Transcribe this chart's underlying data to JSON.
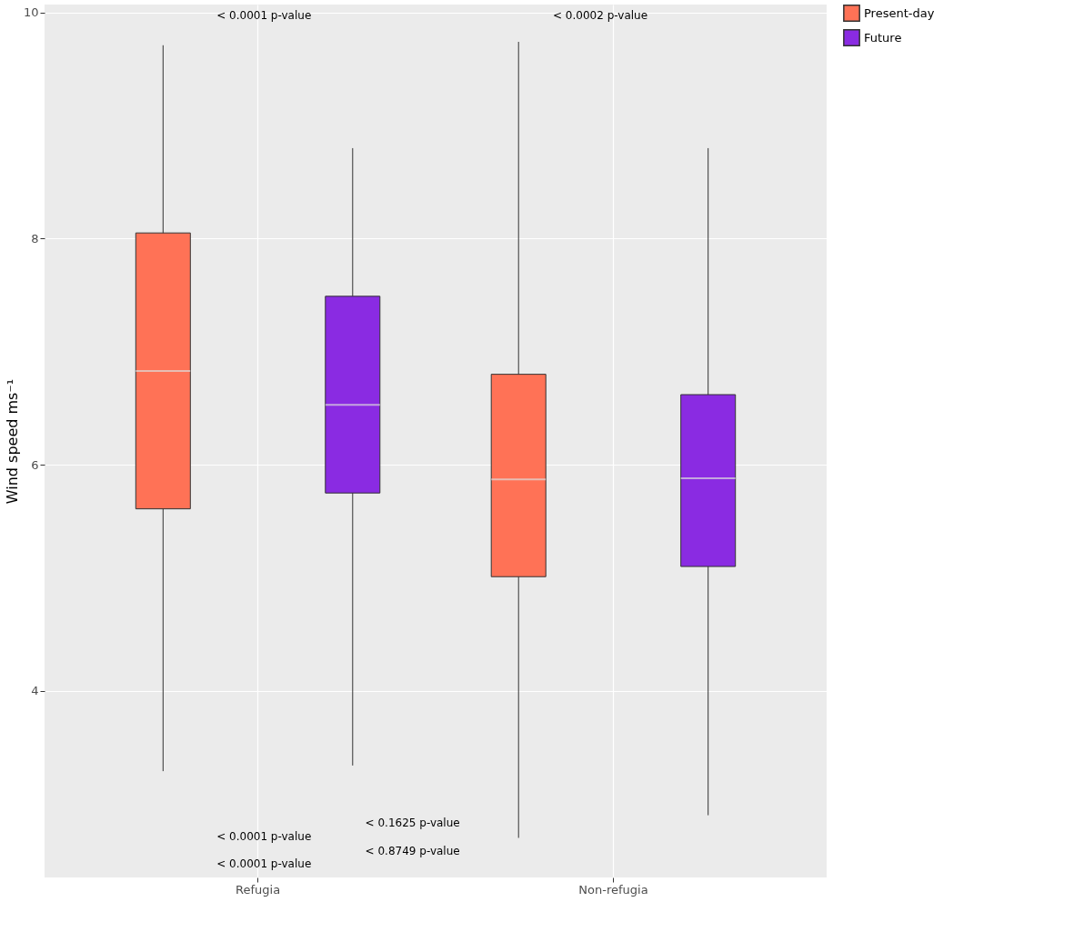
{
  "chart_data": {
    "type": "box",
    "ylabel": "Wind speed ms⁻¹",
    "categories": [
      "Refugia",
      "Non-refugia"
    ],
    "series": [
      {
        "name": "Present-day",
        "color": "#ff7256",
        "boxes": [
          {
            "low": 3.29,
            "q1": 5.61,
            "median": 6.83,
            "q3": 8.05,
            "high": 9.71
          },
          {
            "low": 2.7,
            "q1": 5.01,
            "median": 5.87,
            "q3": 6.8,
            "high": 9.74
          }
        ]
      },
      {
        "name": "Future",
        "color": "#8a2be2",
        "boxes": [
          {
            "low": 3.34,
            "q1": 5.75,
            "median": 6.53,
            "q3": 7.49,
            "high": 8.8
          },
          {
            "low": 2.9,
            "q1": 5.1,
            "median": 5.88,
            "q3": 6.62,
            "high": 8.8
          }
        ]
      }
    ],
    "ylim": [
      2.35,
      10.07
    ],
    "yticks": [
      4,
      6,
      8,
      10
    ],
    "grid": true,
    "legend": "right",
    "annotations": [
      "< 0.0001 p-value",
      "< 0.0002 p-value",
      "< 0.1625 p-value",
      "< 0.0001 p-value",
      "< 0.8749 p-value",
      "< 0.0001 p-value"
    ]
  }
}
